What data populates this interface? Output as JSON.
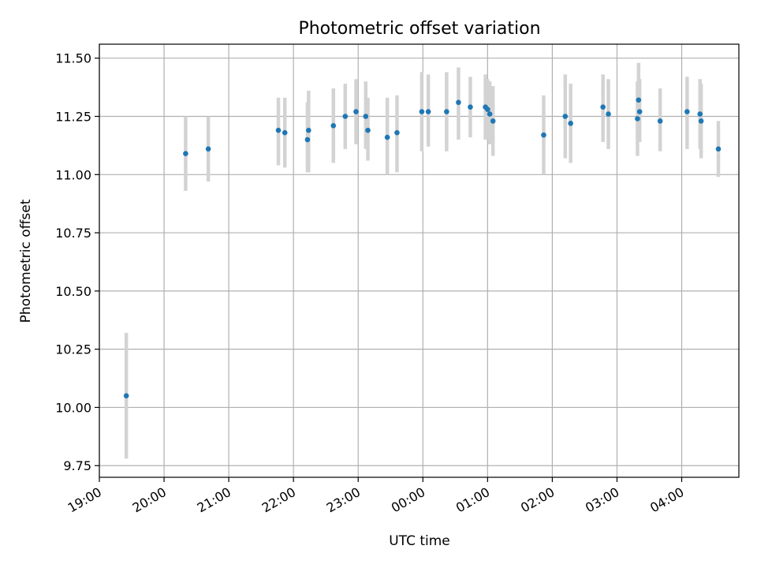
{
  "chart_data": {
    "type": "scatter",
    "title": "Photometric offset variation",
    "xlabel": "UTC time",
    "ylabel": "Photometric offset",
    "grid": true,
    "x_axis_kind": "time",
    "xlim": [
      "19:00",
      "04:53"
    ],
    "ylim": [
      9.7,
      11.56
    ],
    "xticks": [
      "19:00",
      "20:00",
      "21:00",
      "22:00",
      "23:00",
      "00:00",
      "01:00",
      "02:00",
      "03:00",
      "04:00"
    ],
    "yticks": [
      9.75,
      10.0,
      10.25,
      10.5,
      10.75,
      11.0,
      11.25,
      11.5
    ],
    "ytick_labels": [
      "9.75",
      "10.00",
      "10.25",
      "10.50",
      "10.75",
      "11.00",
      "11.25",
      "11.50"
    ],
    "point_color": "#1f77b4",
    "errorbar_color": "#d3d3d3",
    "points": [
      {
        "x": "19:25",
        "y": 10.05,
        "lo": 9.78,
        "hi": 10.32
      },
      {
        "x": "20:20",
        "y": 11.09,
        "lo": 10.93,
        "hi": 11.25
      },
      {
        "x": "20:41",
        "y": 11.11,
        "lo": 10.97,
        "hi": 11.25
      },
      {
        "x": "21:46",
        "y": 11.19,
        "lo": 11.04,
        "hi": 11.33
      },
      {
        "x": "21:52",
        "y": 11.18,
        "lo": 11.03,
        "hi": 11.33
      },
      {
        "x": "22:13",
        "y": 11.15,
        "lo": 11.01,
        "hi": 11.31
      },
      {
        "x": "22:14",
        "y": 11.19,
        "lo": 11.01,
        "hi": 11.36
      },
      {
        "x": "22:37",
        "y": 11.21,
        "lo": 11.05,
        "hi": 11.37
      },
      {
        "x": "22:48",
        "y": 11.25,
        "lo": 11.11,
        "hi": 11.39
      },
      {
        "x": "22:58",
        "y": 11.27,
        "lo": 11.13,
        "hi": 11.41
      },
      {
        "x": "23:07",
        "y": 11.25,
        "lo": 11.11,
        "hi": 11.4
      },
      {
        "x": "23:09",
        "y": 11.19,
        "lo": 11.06,
        "hi": 11.33
      },
      {
        "x": "23:27",
        "y": 11.16,
        "lo": 11.0,
        "hi": 11.33
      },
      {
        "x": "23:36",
        "y": 11.18,
        "lo": 11.01,
        "hi": 11.34
      },
      {
        "x": "23:59",
        "y": 11.27,
        "lo": 11.1,
        "hi": 11.44
      },
      {
        "x": "00:05",
        "y": 11.27,
        "lo": 11.12,
        "hi": 11.43
      },
      {
        "x": "00:22",
        "y": 11.27,
        "lo": 11.1,
        "hi": 11.44
      },
      {
        "x": "00:33",
        "y": 11.31,
        "lo": 11.15,
        "hi": 11.46
      },
      {
        "x": "00:44",
        "y": 11.29,
        "lo": 11.16,
        "hi": 11.42
      },
      {
        "x": "00:58",
        "y": 11.29,
        "lo": 11.15,
        "hi": 11.43
      },
      {
        "x": "01:00",
        "y": 11.28,
        "lo": 11.15,
        "hi": 11.41
      },
      {
        "x": "01:02",
        "y": 11.26,
        "lo": 11.13,
        "hi": 11.4
      },
      {
        "x": "01:05",
        "y": 11.23,
        "lo": 11.08,
        "hi": 11.38
      },
      {
        "x": "01:52",
        "y": 11.17,
        "lo": 11.0,
        "hi": 11.34
      },
      {
        "x": "02:12",
        "y": 11.25,
        "lo": 11.07,
        "hi": 11.43
      },
      {
        "x": "02:17",
        "y": 11.22,
        "lo": 11.05,
        "hi": 11.39
      },
      {
        "x": "02:47",
        "y": 11.29,
        "lo": 11.14,
        "hi": 11.43
      },
      {
        "x": "02:52",
        "y": 11.26,
        "lo": 11.11,
        "hi": 11.41
      },
      {
        "x": "03:19",
        "y": 11.24,
        "lo": 11.08,
        "hi": 11.4
      },
      {
        "x": "03:20",
        "y": 11.32,
        "lo": 11.16,
        "hi": 11.48
      },
      {
        "x": "03:21",
        "y": 11.27,
        "lo": 11.14,
        "hi": 11.41
      },
      {
        "x": "03:40",
        "y": 11.23,
        "lo": 11.1,
        "hi": 11.37
      },
      {
        "x": "04:05",
        "y": 11.27,
        "lo": 11.11,
        "hi": 11.42
      },
      {
        "x": "04:17",
        "y": 11.26,
        "lo": 11.11,
        "hi": 11.41
      },
      {
        "x": "04:18",
        "y": 11.23,
        "lo": 11.07,
        "hi": 11.39
      },
      {
        "x": "04:34",
        "y": 11.11,
        "lo": 10.99,
        "hi": 11.23
      }
    ]
  }
}
